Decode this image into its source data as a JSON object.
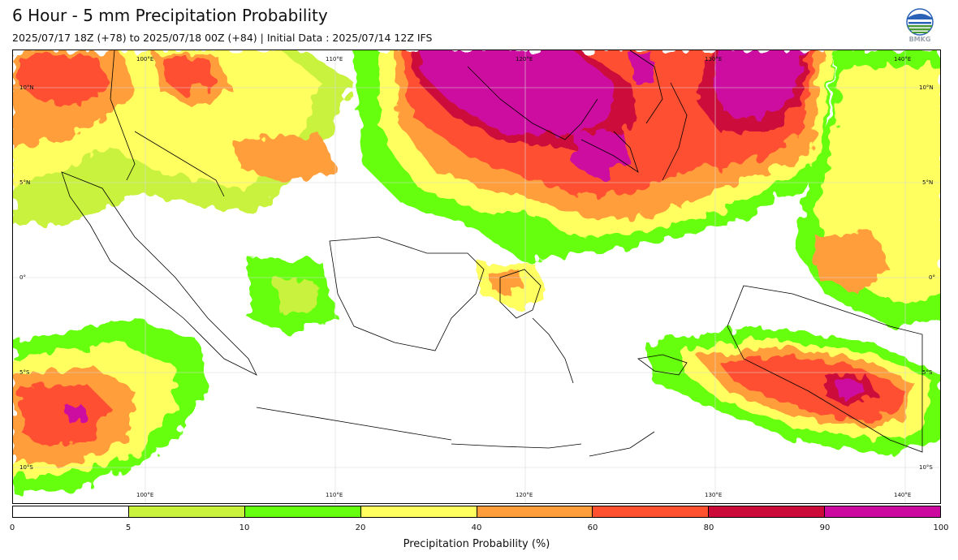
{
  "header": {
    "title": "6 Hour - 5 mm Precipitation Probability",
    "subtitle": "2025/07/17 18Z (+78) to 2025/07/18 00Z (+84) | Initial Data : 2025/07/14 12Z IFS",
    "logo_text": "BMKG"
  },
  "map": {
    "lon_labels": [
      "100°E",
      "110°E",
      "120°E",
      "130°E",
      "140°E"
    ],
    "lat_labels": [
      "10°N",
      "5°N",
      "0°",
      "5°S",
      "10°S"
    ],
    "gridlines": true
  },
  "colorbar": {
    "ticks": [
      "0",
      "5",
      "10",
      "20",
      "40",
      "60",
      "80",
      "90",
      "100"
    ],
    "colors": [
      "#ffffff",
      "#c8f23c",
      "#66ff0f",
      "#ffff60",
      "#ff9e3a",
      "#ff5030",
      "#cc0a3a",
      "#cc0aa0"
    ],
    "label": "Precipitation Probability (%)"
  }
}
